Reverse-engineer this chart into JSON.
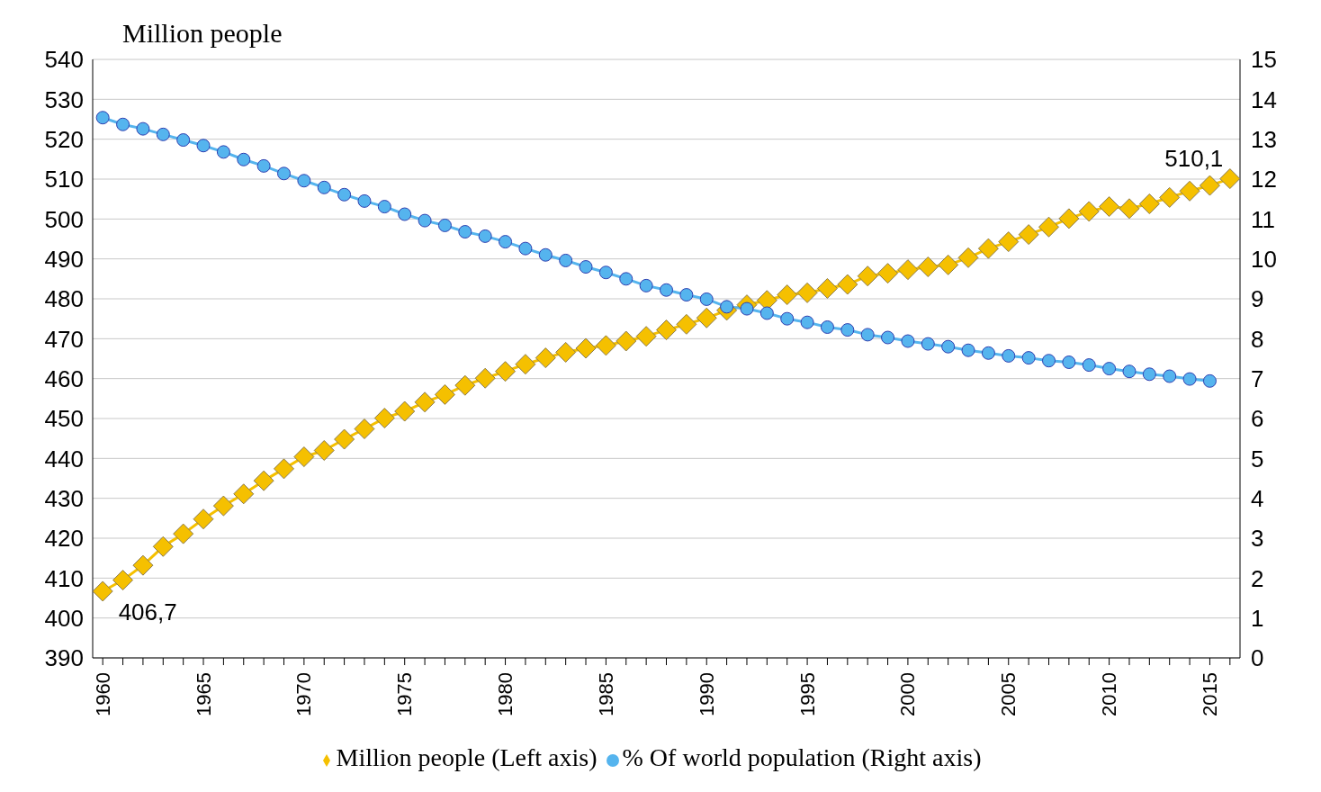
{
  "chart_data": {
    "type": "line",
    "ylabel": "Million people",
    "x": [
      1960,
      1961,
      1962,
      1963,
      1964,
      1965,
      1966,
      1967,
      1968,
      1969,
      1970,
      1971,
      1972,
      1973,
      1974,
      1975,
      1976,
      1977,
      1978,
      1979,
      1980,
      1981,
      1982,
      1983,
      1984,
      1985,
      1986,
      1987,
      1988,
      1989,
      1990,
      1991,
      1992,
      1993,
      1994,
      1995,
      1996,
      1997,
      1998,
      1999,
      2000,
      2001,
      2002,
      2003,
      2004,
      2005,
      2006,
      2007,
      2008,
      2009,
      2010,
      2011,
      2012,
      2013,
      2014,
      2015,
      2016
    ],
    "series": [
      {
        "name": "Million people (Left axis)",
        "color": "#f5c000",
        "marker": "diamond",
        "values": [
          406.7,
          409.5,
          413.2,
          417.9,
          421.1,
          424.8,
          428.1,
          431.1,
          434.4,
          437.4,
          440.4,
          442.0,
          444.8,
          447.4,
          450.1,
          451.8,
          454.1,
          456.0,
          458.3,
          460.1,
          461.8,
          463.6,
          465.2,
          466.6,
          467.6,
          468.3,
          469.4,
          470.6,
          472.2,
          473.6,
          475.2,
          477.1,
          478.5,
          479.6,
          481.0,
          481.5,
          482.6,
          483.6,
          485.7,
          486.4,
          487.3,
          488.0,
          488.5,
          490.3,
          492.6,
          494.3,
          496.1,
          498.0,
          500.1,
          501.9,
          503.1,
          502.6,
          503.8,
          505.4,
          507.0,
          508.4,
          510.1
        ]
      },
      {
        "name": "% Of world population (Right axis)",
        "color": "#55b4ee",
        "marker": "circle",
        "axis": "y2",
        "values": [
          13.54,
          13.37,
          13.26,
          13.12,
          12.98,
          12.84,
          12.68,
          12.49,
          12.33,
          12.14,
          11.96,
          11.79,
          11.61,
          11.45,
          11.31,
          11.12,
          10.96,
          10.84,
          10.68,
          10.57,
          10.43,
          10.26,
          10.1,
          9.96,
          9.8,
          9.66,
          9.5,
          9.33,
          9.22,
          9.1,
          8.99,
          8.8,
          8.75,
          8.64,
          8.5,
          8.41,
          8.29,
          8.22,
          8.1,
          8.03,
          7.94,
          7.87,
          7.8,
          7.71,
          7.64,
          7.57,
          7.52,
          7.45,
          7.41,
          7.34,
          7.25,
          7.18,
          7.11,
          7.06,
          6.99,
          6.94,
          null
        ]
      }
    ],
    "xlim": [
      1959.5,
      2016.5
    ],
    "xticks": [
      1960,
      {
        "value": 1961,
        "label": null
      },
      {
        "value": 1962,
        "label": null
      },
      {
        "value": 1963,
        "label": null
      },
      {
        "value": 1964,
        "label": null
      },
      1965,
      {
        "value": 1966,
        "label": null
      },
      {
        "value": 1967,
        "label": null
      },
      {
        "value": 1968,
        "label": null
      },
      {
        "value": 1969,
        "label": null
      },
      1970,
      {
        "value": 1971,
        "label": null
      },
      {
        "value": 1972,
        "label": null
      },
      {
        "value": 1973,
        "label": null
      },
      {
        "value": 1974,
        "label": null
      },
      1975,
      {
        "value": 1976,
        "label": null
      },
      {
        "value": 1977,
        "label": null
      },
      {
        "value": 1978,
        "label": null
      },
      {
        "value": 1979,
        "label": null
      },
      1980,
      {
        "value": 1981,
        "label": null
      },
      {
        "value": 1982,
        "label": null
      },
      {
        "value": 1983,
        "label": null
      },
      {
        "value": 1984,
        "label": null
      },
      1985,
      {
        "value": 1986,
        "label": null
      },
      {
        "value": 1987,
        "label": null
      },
      {
        "value": 1988,
        "label": null
      },
      {
        "value": 1989,
        "label": null
      },
      1990,
      {
        "value": 1991,
        "label": null
      },
      {
        "value": 1992,
        "label": null
      },
      {
        "value": 1993,
        "label": null
      },
      {
        "value": 1994,
        "label": null
      },
      1995,
      {
        "value": 1996,
        "label": null
      },
      {
        "value": 1997,
        "label": null
      },
      {
        "value": 1998,
        "label": null
      },
      {
        "value": 1999,
        "label": null
      },
      2000,
      {
        "value": 2001,
        "label": null
      },
      {
        "value": 2002,
        "label": null
      },
      {
        "value": 2003,
        "label": null
      },
      {
        "value": 2004,
        "label": null
      },
      2005,
      {
        "value": 2006,
        "label": null
      },
      {
        "value": 2007,
        "label": null
      },
      {
        "value": 2008,
        "label": null
      },
      {
        "value": 2009,
        "label": null
      },
      2010,
      {
        "value": 2011,
        "label": null
      },
      {
        "value": 2012,
        "label": null
      },
      {
        "value": 2013,
        "label": null
      },
      {
        "value": 2014,
        "label": null
      },
      2015,
      {
        "value": 2016,
        "label": null
      }
    ],
    "ylim": [
      390,
      540
    ],
    "yticks": [
      390,
      400,
      410,
      420,
      430,
      440,
      450,
      460,
      470,
      480,
      490,
      500,
      510,
      520,
      530,
      540
    ],
    "y2lim": [
      0,
      15
    ],
    "y2ticks": [
      0,
      1,
      2,
      3,
      4,
      5,
      6,
      7,
      8,
      9,
      10,
      11,
      12,
      13,
      14,
      15
    ],
    "annotations": [
      {
        "text": "406,7",
        "x": 1960,
        "y": 406.7
      },
      {
        "text": "510,1",
        "x": 2016,
        "y": 510.1
      }
    ],
    "grid": "y",
    "legend": "bottom"
  }
}
